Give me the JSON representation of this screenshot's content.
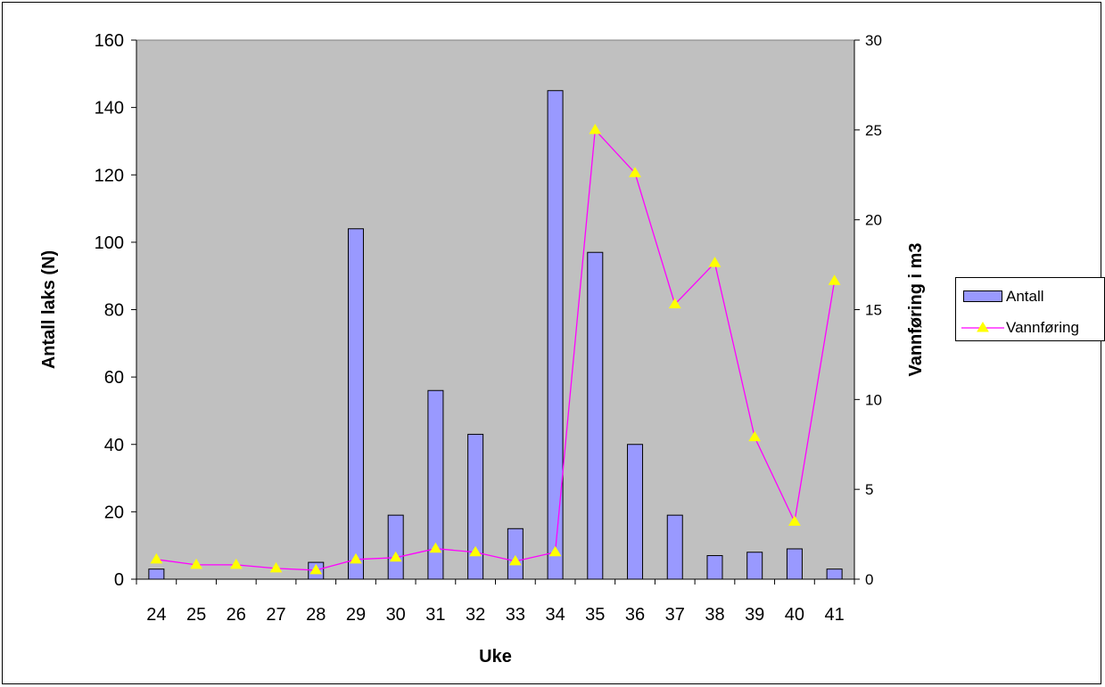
{
  "chart_data": {
    "type": "bar",
    "categories": [
      "24",
      "25",
      "26",
      "27",
      "28",
      "29",
      "30",
      "31",
      "32",
      "33",
      "34",
      "35",
      "36",
      "37",
      "38",
      "39",
      "40",
      "41"
    ],
    "series": [
      {
        "name": "Antall",
        "type": "bar",
        "axis": "left",
        "color": "#9999ff",
        "values": [
          3,
          0,
          0,
          0,
          5,
          104,
          19,
          56,
          43,
          15,
          145,
          97,
          40,
          19,
          7,
          8,
          9,
          3
        ]
      },
      {
        "name": "Vannføring",
        "type": "line",
        "axis": "right",
        "color": "#ff00ff",
        "marker": "triangle",
        "marker_color": "#ffff00",
        "values": [
          1.1,
          0.8,
          0.8,
          0.6,
          0.5,
          1.1,
          1.2,
          1.7,
          1.5,
          1.0,
          1.5,
          25.0,
          22.6,
          15.3,
          17.6,
          7.9,
          3.2,
          16.6
        ]
      }
    ],
    "title": "",
    "xlabel": "Uke",
    "ylabel": "Antall laks (N)",
    "y2label": "Vannføring i m3",
    "ylim": [
      0,
      160
    ],
    "yticks": [
      0,
      20,
      40,
      60,
      80,
      100,
      120,
      140,
      160
    ],
    "y2lim": [
      0,
      30
    ],
    "y2ticks": [
      0,
      5,
      10,
      15,
      20,
      25,
      30
    ],
    "plot_background": "#c0c0c0",
    "grid": false,
    "legend_position": "right"
  }
}
